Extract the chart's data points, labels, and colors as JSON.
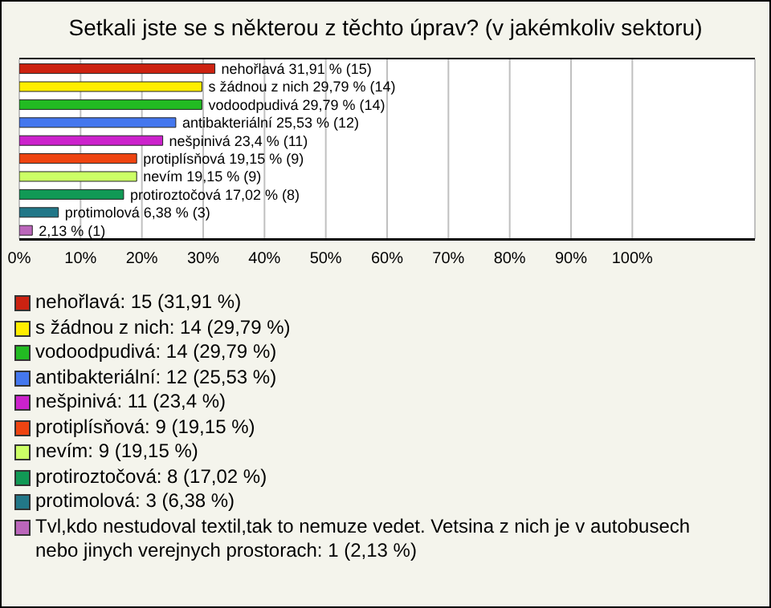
{
  "chart_data": {
    "type": "bar",
    "orientation": "horizontal",
    "title": "Setkali jste se s některou z těchto úprav? (v jakémkoliv sektoru)",
    "categories": [
      "nehořlavá",
      "s žádnou z nich",
      "vodoodpudivá",
      "antibakteriální",
      "nešpinivá",
      "protiplísňová",
      "nevím",
      "protiroztočová",
      "protimolová",
      null
    ],
    "values": [
      31.91,
      29.79,
      29.79,
      25.53,
      23.4,
      19.15,
      19.15,
      17.02,
      6.38,
      2.13
    ],
    "colors": [
      "#cc2211",
      "#ffee00",
      "#22bb22",
      "#4477ee",
      "#cc22cc",
      "#ee4411",
      "#ccff66",
      "#119955",
      "#227788",
      "#bb66bb"
    ],
    "value_labels": [
      "31,91 % (15)",
      "29,79 % (14)",
      "29,79 % (14)",
      "25,53 % (12)",
      "23,4 % (11)",
      "19,15 % (9)",
      "19,15 % (9)",
      "17,02 % (8)",
      "6,38 % (3)",
      "2,13 % (1)"
    ],
    "xlim": [
      0,
      120
    ],
    "xticks": [
      {
        "value": 0,
        "label": "0%"
      },
      {
        "value": 10,
        "label": "10%"
      },
      {
        "value": 20,
        "label": "20%"
      },
      {
        "value": 30,
        "label": "30%"
      },
      {
        "value": 40,
        "label": "40%"
      },
      {
        "value": 50,
        "label": "50%"
      },
      {
        "value": 60,
        "label": "60%"
      },
      {
        "value": 70,
        "label": "70%"
      },
      {
        "value": 80,
        "label": "80%"
      },
      {
        "value": 90,
        "label": "90%"
      },
      {
        "value": 100,
        "label": "100%"
      }
    ],
    "grid": "x",
    "annotations": [
      "nehořlavá: 15 (31,91 %)",
      "s žádnou z nich: 14 (29,79 %)",
      "vodoodpudivá: 14 (29,79 %)",
      "antibakteriální: 12 (25,53 %)",
      "nešpinivá: 11 (23,4 %)",
      "protiplísňová: 9 (19,15 %)",
      "nevím: 9 (19,15 %)",
      "protiroztočová: 8 (17,02 %)",
      "protimolová: 3 (6,38 %)",
      "Tvl,kdo nestudoval textil,tak to nemuze vedet. Vetsina z nich je v autobusech nebo jinych verejnych prostorach: 1 (2,13 %)"
    ]
  }
}
